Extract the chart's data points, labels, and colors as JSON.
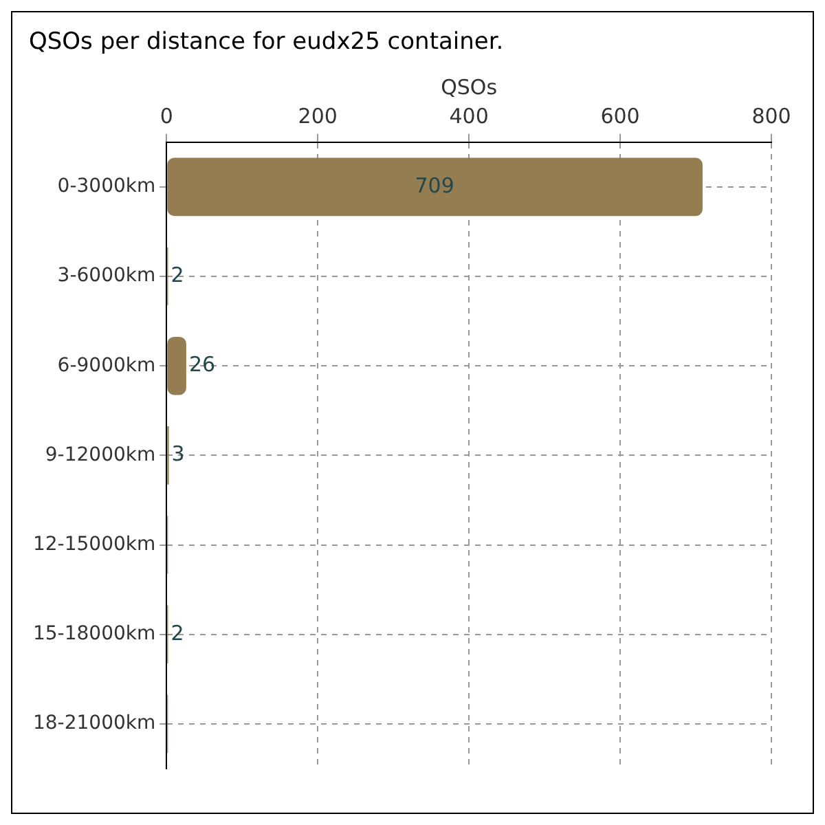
{
  "chart_data": {
    "type": "bar",
    "orientation": "horizontal",
    "title": "QSOs per distance for eudx25 container.",
    "xlabel": "QSOs",
    "categories": [
      "0-3000km",
      "3-6000km",
      "6-9000km",
      "9-12000km",
      "12-15000km",
      "15-18000km",
      "18-21000km"
    ],
    "values": [
      709,
      2,
      26,
      3,
      0,
      2,
      0
    ],
    "value_labels": [
      "709",
      "2",
      "26",
      "3",
      null,
      "2",
      null
    ],
    "color": "#947d50",
    "xlim": [
      0,
      800
    ],
    "xticks": [
      0,
      200,
      400,
      600,
      800
    ],
    "grid": true,
    "legend": false
  }
}
